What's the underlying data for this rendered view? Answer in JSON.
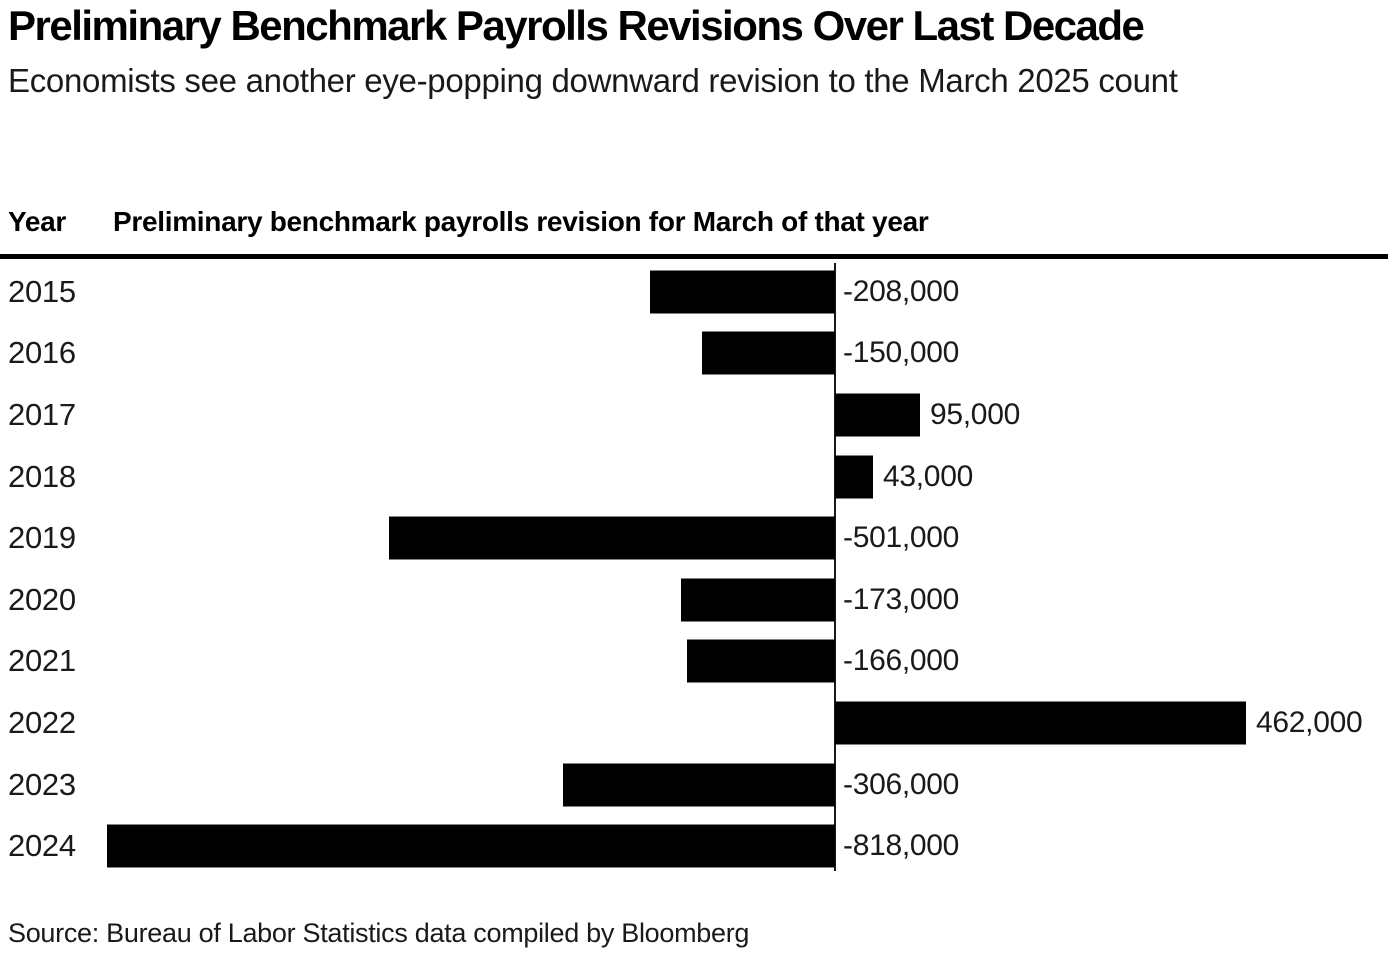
{
  "header": {
    "title": "Preliminary Benchmark Payrolls Revisions Over Last Decade",
    "subtitle": "Economists see another eye-popping downward revision to the March 2025 count"
  },
  "table": {
    "year_column_header": "Year",
    "value_column_header": "Preliminary benchmark payrolls revision for March of that year"
  },
  "chart_data": {
    "type": "bar",
    "orientation": "horizontal",
    "title": "Preliminary Benchmark Payrolls Revisions Over Last Decade",
    "subtitle": "Economists see another eye-popping downward revision to the March 2025 count",
    "categories": [
      "2015",
      "2016",
      "2017",
      "2018",
      "2019",
      "2020",
      "2021",
      "2022",
      "2023",
      "2024"
    ],
    "values": [
      -208000,
      -150000,
      95000,
      43000,
      -501000,
      -173000,
      -166000,
      462000,
      -306000,
      -818000
    ],
    "value_labels": [
      "-208,000",
      "-150,000",
      "95,000",
      "43,000",
      "-501,000",
      "-173,000",
      "-166,000",
      "462,000",
      "-306,000",
      "-818,000"
    ],
    "xlabel": "Preliminary benchmark payrolls revision for March of that year",
    "ylabel": "Year",
    "xlim": [
      -818000,
      462000
    ],
    "grid": false,
    "legend": false,
    "zero_axis_line": true
  },
  "footer": {
    "source": "Source: Bureau of Labor Statistics data compiled by Bloomberg"
  },
  "colors": {
    "bar": "#000000",
    "text": "#1a1a1a",
    "title": "#000000",
    "rule": "#000000",
    "background": "#ffffff"
  }
}
